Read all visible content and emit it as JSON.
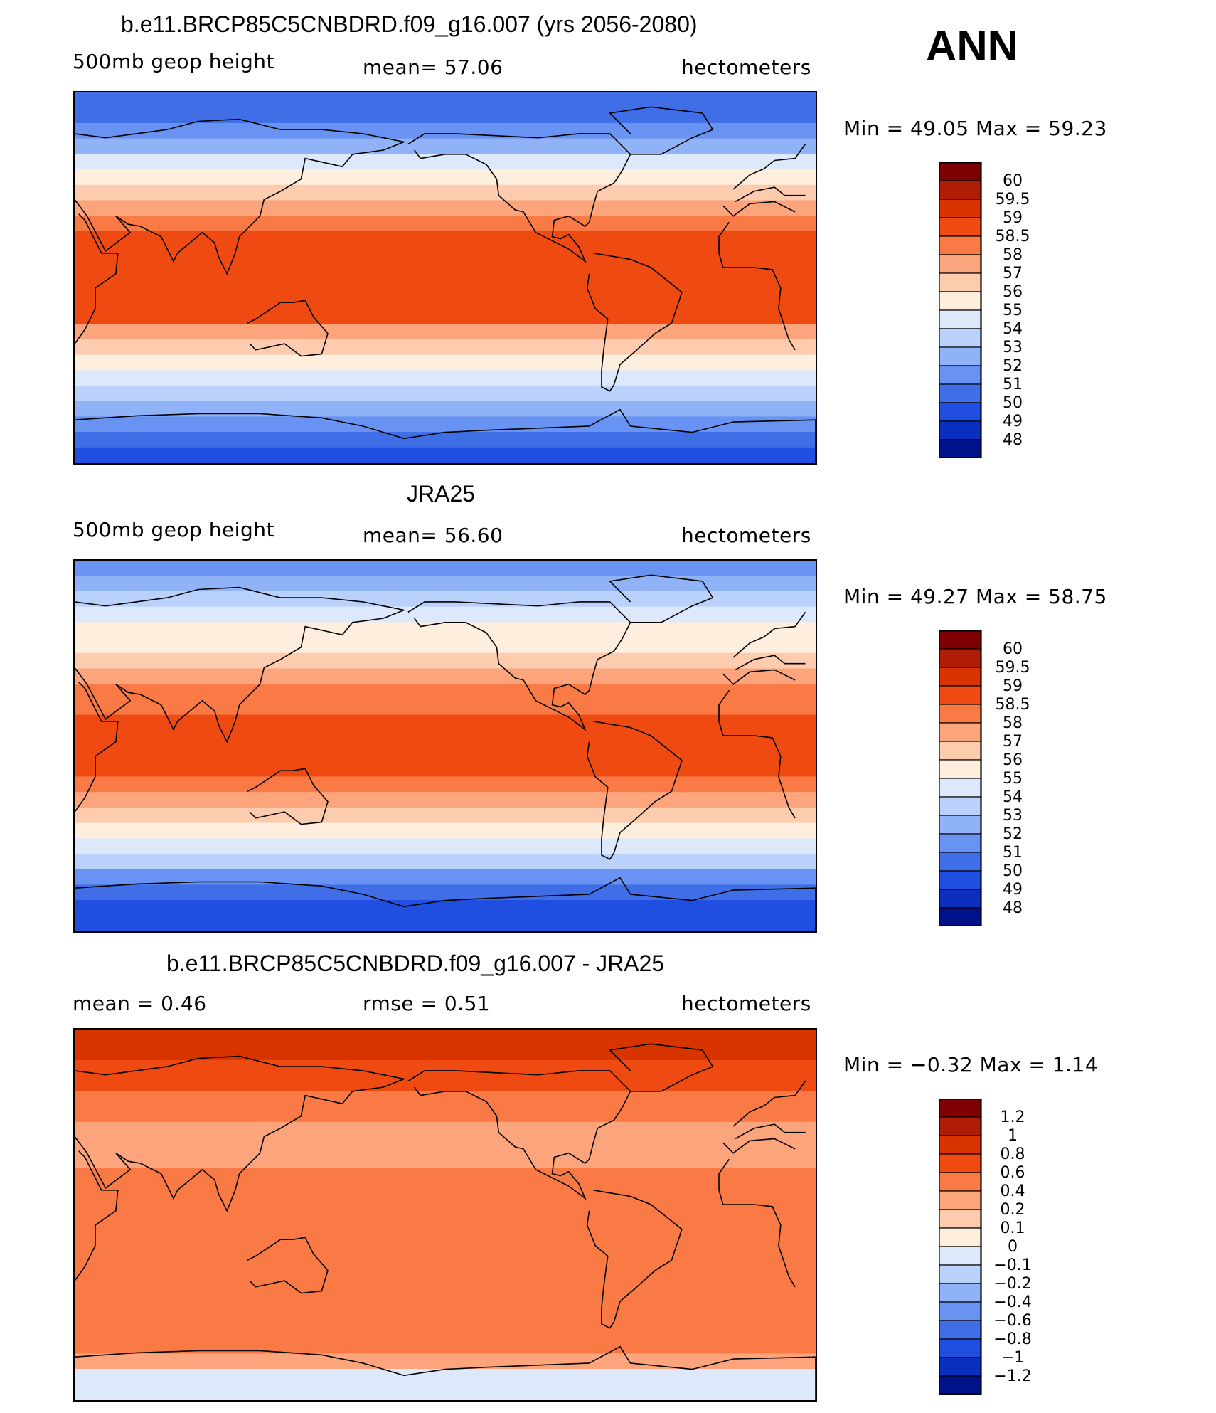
{
  "season": "ANN",
  "panels": [
    {
      "title": "b.e11.BRCP85C5CNBDRD.f09_g16.007 (yrs 2056-2080)",
      "left": "500mb geop height",
      "center": "mean=   57.06",
      "right": "hectometers",
      "minmax": "Min =   49.05  Max =   59.23"
    },
    {
      "title": "JRA25",
      "left": "500mb geop height",
      "center": "mean=   56.60",
      "right": "hectometers",
      "minmax": "Min =   49.27  Max =   58.75"
    },
    {
      "title": "b.e11.BRCP85C5CNBDRD.f09_g16.007 - JRA25",
      "left": "mean =    0.46",
      "center": "rmse =    0.51",
      "right": "hectometers",
      "minmax": "Min =  −0.32  Max =    1.14"
    }
  ],
  "chart_data": [
    {
      "type": "heatmap",
      "field": "500mb geop height",
      "units": "hectometers",
      "mean": 57.06,
      "min": 49.05,
      "max": 59.23,
      "levels": [
        "60",
        "59.5",
        "59",
        "58.5",
        "58",
        "57",
        "56",
        "55",
        "54",
        "53",
        "52",
        "51",
        "50",
        "49",
        "48"
      ],
      "colors": [
        "#7f0000",
        "#b01d06",
        "#d83400",
        "#f04a13",
        "#f97a45",
        "#fca47c",
        "#fdcbad",
        "#fdeedd",
        "#dde9fb",
        "#bad2fb",
        "#90b3f8",
        "#6893f2",
        "#3f6ee6",
        "#1f4ee0",
        "#0a2fbf",
        "#001289"
      ],
      "zonal_profile": [
        50.0,
        50.5,
        51.5,
        52.5,
        54.0,
        55.4,
        56.3,
        57.2,
        58.1,
        58.7,
        58.9,
        58.8,
        58.8,
        58.9,
        58.6,
        57.8,
        56.8,
        55.8,
        54.8,
        53.5,
        52.2,
        51.0,
        50.2,
        49.6
      ]
    },
    {
      "type": "heatmap",
      "field": "500mb geop height",
      "units": "hectometers",
      "mean": 56.6,
      "min": 49.27,
      "max": 58.75,
      "levels": [
        "60",
        "59.5",
        "59",
        "58.5",
        "58",
        "57",
        "56",
        "55",
        "54",
        "53",
        "52",
        "51",
        "50",
        "49",
        "48"
      ],
      "colors": [
        "#7f0000",
        "#b01d06",
        "#d83400",
        "#f04a13",
        "#f97a45",
        "#fca47c",
        "#fdcbad",
        "#fdeedd",
        "#dde9fb",
        "#bad2fb",
        "#90b3f8",
        "#6893f2",
        "#3f6ee6",
        "#1f4ee0",
        "#0a2fbf",
        "#001289"
      ],
      "zonal_profile": [
        51.5,
        52.2,
        53.0,
        54.0,
        55.0,
        55.8,
        56.6,
        57.4,
        58.0,
        58.4,
        58.5,
        58.5,
        58.5,
        58.5,
        58.3,
        57.6,
        56.6,
        55.4,
        54.2,
        53.0,
        51.6,
        50.6,
        49.8,
        49.4
      ]
    },
    {
      "type": "heatmap",
      "field": "difference",
      "units": "hectometers",
      "mean": 0.46,
      "rmse": 0.51,
      "min": -0.32,
      "max": 1.14,
      "levels": [
        "1.2",
        "1",
        "0.8",
        "0.6",
        "0.4",
        "0.2",
        "0.1",
        "0",
        "−0.1",
        "−0.2",
        "−0.4",
        "−0.6",
        "−0.8",
        "−1",
        "−1.2"
      ],
      "colors": [
        "#7f0000",
        "#b01d06",
        "#d83400",
        "#f04a13",
        "#f97a45",
        "#fca47c",
        "#fdcbad",
        "#fdeedd",
        "#dde9fb",
        "#bad2fb",
        "#90b3f8",
        "#6893f2",
        "#3f6ee6",
        "#1f4ee0",
        "#0a2fbf",
        "#001289"
      ],
      "zonal_profile": [
        0.95,
        0.9,
        0.75,
        0.6,
        0.55,
        0.45,
        0.35,
        0.3,
        0.35,
        0.4,
        0.45,
        0.45,
        0.45,
        0.45,
        0.5,
        0.5,
        0.5,
        0.45,
        0.4,
        0.4,
        0.45,
        0.25,
        -0.05,
        -0.1
      ]
    }
  ]
}
